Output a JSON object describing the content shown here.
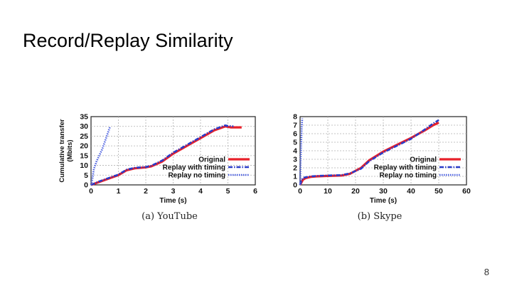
{
  "slide": {
    "title": "Record/Replay Similarity",
    "page_number": "8"
  },
  "colors": {
    "original": "#e8202a",
    "replay_timing": "#2a3cc8",
    "replay_no_timing": "#4a5fe0",
    "grid": "#b0b0b0"
  },
  "chart_data": [
    {
      "type": "line",
      "caption": "(a) YouTube",
      "xlabel": "Time (s)",
      "ylabel": "Cumulative transfer (Mbits)",
      "xlim": [
        0,
        6
      ],
      "ylim": [
        0,
        35
      ],
      "xticks": [
        "0",
        "1",
        "2",
        "3",
        "4",
        "5",
        "6"
      ],
      "yticks": [
        "0",
        "5",
        "10",
        "15",
        "20",
        "25",
        "30",
        "35"
      ],
      "grid": true,
      "legend_position": "bottom-right",
      "series": [
        {
          "name": "Original",
          "style": "solid",
          "x": [
            0,
            0.3,
            0.7,
            1.0,
            1.3,
            1.6,
            2.0,
            2.2,
            2.6,
            3.0,
            3.5,
            4.0,
            4.5,
            4.9,
            5.1,
            5.5
          ],
          "y": [
            0,
            1.5,
            3.5,
            5,
            7.5,
            8.5,
            9,
            9.5,
            12,
            16,
            20,
            24,
            28,
            30,
            29.5,
            29.5
          ]
        },
        {
          "name": "Replay with timing",
          "style": "dashdot",
          "x": [
            0,
            0.3,
            0.7,
            1.0,
            1.3,
            1.6,
            2.0,
            2.2,
            2.6,
            3.0,
            3.5,
            4.0,
            4.5,
            4.9,
            5.0,
            5.2
          ],
          "y": [
            0,
            1.8,
            3.8,
            5.3,
            7.8,
            8.8,
            9.2,
            9.8,
            12.5,
            16.5,
            20.5,
            24.5,
            28.5,
            30.5,
            30.2,
            30
          ]
        },
        {
          "name": "Replay no timing",
          "style": "dotted",
          "x": [
            0,
            0.05,
            0.1,
            0.2,
            0.3,
            0.4,
            0.5,
            0.6,
            0.7
          ],
          "y": [
            0,
            3,
            8,
            12,
            15,
            18,
            22,
            26,
            30
          ]
        }
      ]
    },
    {
      "type": "line",
      "caption": "(b) Skype",
      "xlabel": "Time (s)",
      "ylabel": "",
      "xlim": [
        0,
        60
      ],
      "ylim": [
        0,
        8
      ],
      "xticks": [
        "0",
        "10",
        "20",
        "30",
        "40",
        "50",
        "60"
      ],
      "yticks": [
        "0",
        "1",
        "2",
        "3",
        "4",
        "5",
        "6",
        "7",
        "8"
      ],
      "grid": true,
      "legend_position": "bottom-right",
      "series": [
        {
          "name": "Original",
          "style": "solid",
          "x": [
            0,
            0.5,
            1,
            2,
            4,
            6,
            10,
            15,
            18,
            22,
            25,
            30,
            35,
            40,
            45,
            48,
            50
          ],
          "y": [
            0,
            0.3,
            0.6,
            0.8,
            0.95,
            1.0,
            1.05,
            1.1,
            1.3,
            2.0,
            2.9,
            3.9,
            4.7,
            5.5,
            6.4,
            7.0,
            7.3
          ]
        },
        {
          "name": "Replay with timing",
          "style": "dashdot",
          "x": [
            0,
            0.5,
            1,
            2,
            4,
            6,
            10,
            15,
            18,
            22,
            25,
            30,
            35,
            40,
            45,
            48,
            50
          ],
          "y": [
            0,
            0.5,
            0.8,
            0.9,
            1.0,
            1.05,
            1.1,
            1.15,
            1.35,
            1.9,
            2.8,
            3.8,
            4.6,
            5.4,
            6.5,
            7.2,
            7.6
          ]
        },
        {
          "name": "Replay no timing",
          "style": "dotted",
          "x": [
            0,
            0.1,
            0.2,
            0.3,
            0.4,
            0.5,
            0.6,
            0.7,
            0.8
          ],
          "y": [
            0,
            1.5,
            3,
            4,
            5,
            6,
            6.8,
            7.3,
            7.8
          ]
        }
      ]
    }
  ]
}
